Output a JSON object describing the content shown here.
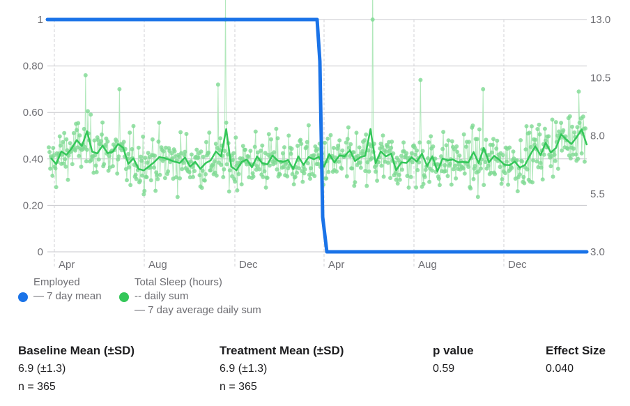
{
  "chart_data": {
    "type": "line",
    "x_tick_labels": [
      "Apr",
      "Aug",
      "Dec",
      "Apr",
      "Aug",
      "Dec"
    ],
    "y_left_ticks": [
      "0",
      "0.20",
      "0.40",
      "0.60",
      "0.80",
      "1"
    ],
    "y_left_range": [
      0,
      1
    ],
    "y_right_ticks": [
      "3.0",
      "5.5",
      "8.0",
      "10.5",
      "13.0"
    ],
    "y_right_range": [
      3.0,
      13.0
    ],
    "grid": true,
    "legend_placement": "bottom-left",
    "series": [
      {
        "name": "Employed",
        "axis": "left",
        "color": "#1a73e8",
        "style": "7 day mean",
        "segments": [
          {
            "period": "baseline",
            "value": 1
          },
          {
            "period": "treatment",
            "value": 0
          }
        ]
      },
      {
        "name": "Total Sleep (hours)",
        "axis": "right",
        "color": "#34c759",
        "style": "daily sum points, 7 day average daily sum line",
        "baseline_mean": 6.9,
        "treatment_mean": 6.9,
        "sd": 1.3,
        "notable_highs": [
          10.6,
          13.9,
          10.2,
          10.0,
          10.4,
          15.0,
          10.0,
          9.9
        ],
        "weekly_average_range": [
          6.0,
          8.6
        ]
      }
    ]
  },
  "legend": {
    "employed": {
      "title": "Employed",
      "line1": "— 7 day mean"
    },
    "sleep": {
      "title": "Total Sleep (hours)",
      "line1": "-- daily sum",
      "line2": "— 7 day average daily sum"
    }
  },
  "colors": {
    "blue": "#1a73e8",
    "green": "#34c759",
    "green_light": "#a8e6b4"
  },
  "stats": {
    "baseline": {
      "header": "Baseline Mean (±SD)",
      "value": "6.9 (±1.3)",
      "n": "n = 365"
    },
    "treatment": {
      "header": "Treatment Mean (±SD)",
      "value": "6.9 (±1.3)",
      "n": "n = 365"
    },
    "pvalue": {
      "header": "p value",
      "value": "0.59"
    },
    "effect": {
      "header": "Effect Size",
      "value": "0.040"
    }
  }
}
